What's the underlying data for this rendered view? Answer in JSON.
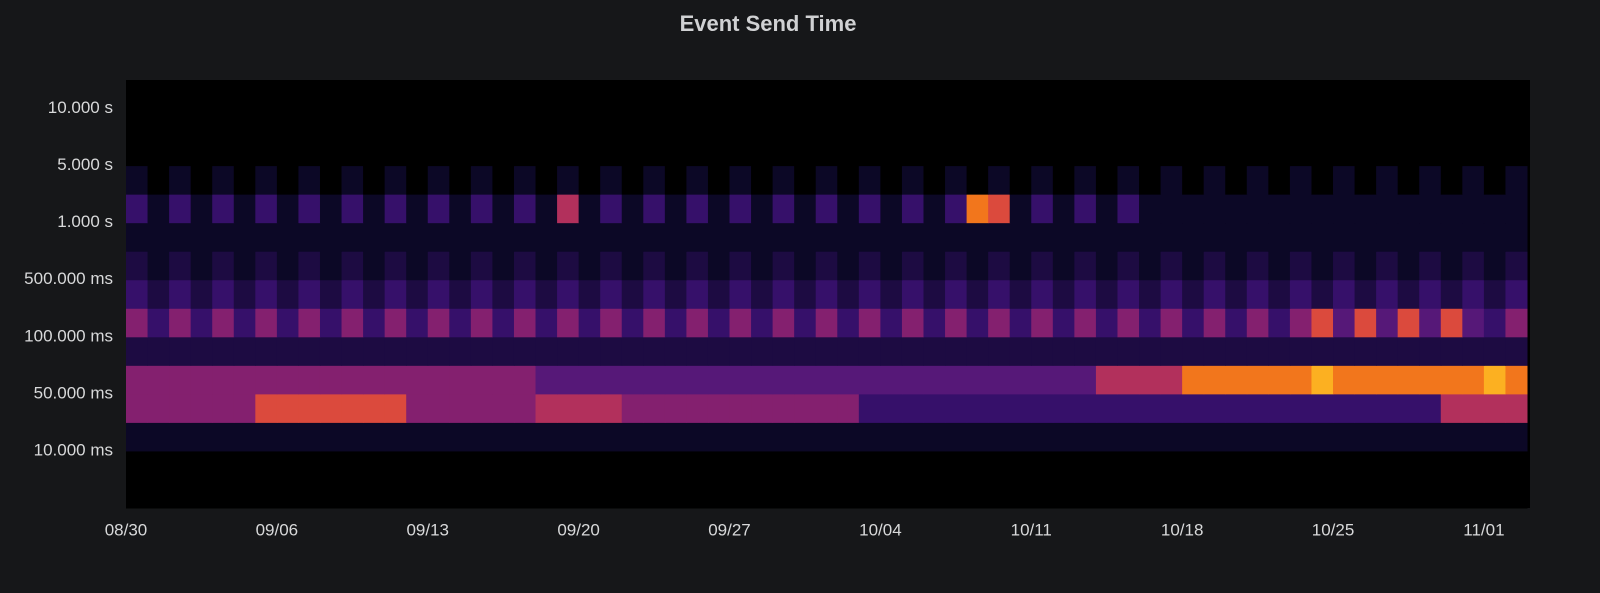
{
  "chart_data": {
    "type": "heatmap",
    "title": "Event Send Time",
    "x": [
      "08/30",
      null,
      null,
      null,
      null,
      null,
      null,
      "09/06",
      null,
      null,
      null,
      null,
      null,
      null,
      "09/13",
      null,
      null,
      null,
      null,
      null,
      null,
      "09/20",
      null,
      null,
      null,
      null,
      null,
      null,
      "09/27",
      null,
      null,
      null,
      null,
      null,
      null,
      "10/04",
      null,
      null,
      null,
      null,
      null,
      null,
      "10/11",
      null,
      null,
      null,
      null,
      null,
      null,
      "10/18",
      null,
      null,
      null,
      null,
      null,
      null,
      "10/25",
      null,
      null,
      null,
      null,
      null,
      null,
      "11/01",
      null
    ],
    "y_buckets": [
      null,
      "10.000 ms",
      null,
      "50.000 ms",
      null,
      "100.000 ms",
      null,
      "500.000 ms",
      null,
      "1.000 s",
      null,
      "5.000 s",
      null,
      "10.000 s",
      null
    ],
    "zlim": [
      0,
      10
    ],
    "colorscale": "inferno",
    "values": [
      [
        0,
        0,
        0,
        0,
        0,
        0,
        0,
        0,
        0,
        0,
        0,
        0,
        0,
        0,
        0,
        0,
        0,
        0,
        0,
        0,
        0,
        0,
        0,
        0,
        0,
        0,
        0,
        0,
        0,
        0,
        0,
        0,
        0,
        0,
        0,
        0,
        0,
        0,
        0,
        0,
        0,
        0,
        0,
        0,
        0,
        0,
        0,
        0,
        0,
        0,
        0,
        0,
        0,
        0,
        0,
        0,
        0,
        0,
        0,
        0,
        0,
        0,
        0,
        0,
        0
      ],
      [
        0,
        0,
        0,
        0,
        0,
        0,
        0,
        0,
        0,
        0,
        0,
        0,
        0,
        0,
        0,
        0,
        0,
        0,
        0,
        0,
        0,
        0,
        0,
        0,
        0,
        0,
        0,
        0,
        0,
        0,
        0,
        0,
        0,
        0,
        0,
        0,
        0,
        0,
        0,
        0,
        0,
        0,
        0,
        0,
        0,
        0,
        0,
        0,
        0,
        0,
        0,
        0,
        0,
        0,
        0,
        0,
        0,
        0,
        0,
        0,
        0,
        0,
        0,
        0,
        0
      ],
      [
        1,
        1,
        1,
        1,
        1,
        1,
        1,
        1,
        1,
        1,
        1,
        1,
        1,
        1,
        1,
        1,
        1,
        1,
        1,
        1,
        1,
        1,
        1,
        1,
        1,
        1,
        1,
        1,
        1,
        1,
        1,
        1,
        1,
        1,
        1,
        1,
        1,
        1,
        1,
        1,
        1,
        1,
        1,
        1,
        1,
        1,
        1,
        1,
        1,
        1,
        1,
        1,
        1,
        1,
        1,
        1,
        1,
        1,
        1,
        1,
        1,
        1,
        1,
        1,
        1
      ],
      [
        5,
        5,
        5,
        5,
        5,
        5,
        7,
        7,
        7,
        7,
        7,
        7,
        7,
        5,
        5,
        5,
        5,
        5,
        5,
        6,
        6,
        6,
        6,
        5,
        5,
        5,
        5,
        5,
        5,
        5,
        5,
        5,
        5,
        5,
        3,
        3,
        3,
        3,
        3,
        3,
        3,
        3,
        3,
        3,
        3,
        3,
        3,
        3,
        3,
        3,
        3,
        3,
        3,
        3,
        3,
        3,
        3,
        3,
        3,
        3,
        3,
        6,
        6,
        6,
        6
      ],
      [
        5,
        5,
        5,
        5,
        5,
        5,
        5,
        5,
        5,
        5,
        5,
        5,
        5,
        5,
        5,
        5,
        5,
        5,
        5,
        4,
        4,
        4,
        4,
        4,
        4,
        4,
        4,
        4,
        4,
        4,
        4,
        4,
        4,
        4,
        4,
        4,
        4,
        4,
        4,
        4,
        4,
        4,
        4,
        4,
        4,
        6,
        6,
        6,
        6,
        8,
        8,
        8,
        8,
        8,
        8,
        9,
        8,
        8,
        8,
        8,
        8,
        8,
        8,
        9,
        8
      ],
      [
        2,
        2,
        2,
        2,
        2,
        2,
        2,
        2,
        2,
        2,
        2,
        2,
        2,
        2,
        2,
        2,
        2,
        2,
        2,
        2,
        2,
        2,
        2,
        2,
        2,
        2,
        2,
        2,
        2,
        2,
        2,
        2,
        2,
        2,
        2,
        2,
        2,
        2,
        2,
        2,
        2,
        2,
        2,
        2,
        2,
        2,
        2,
        2,
        2,
        2,
        2,
        2,
        2,
        2,
        2,
        2,
        2,
        2,
        2,
        2,
        2,
        2,
        2,
        2,
        2
      ],
      [
        5,
        3,
        5,
        3,
        5,
        3,
        5,
        3,
        5,
        3,
        5,
        3,
        5,
        3,
        5,
        3,
        5,
        3,
        5,
        3,
        5,
        3,
        5,
        3,
        5,
        3,
        5,
        3,
        5,
        3,
        5,
        3,
        5,
        3,
        5,
        3,
        5,
        3,
        5,
        3,
        5,
        3,
        5,
        3,
        5,
        3,
        5,
        3,
        5,
        3,
        5,
        3,
        5,
        3,
        5,
        7,
        4,
        7,
        4,
        7,
        4,
        7,
        4,
        3,
        5
      ],
      [
        3,
        2,
        3,
        2,
        3,
        2,
        3,
        2,
        3,
        2,
        3,
        2,
        3,
        2,
        3,
        2,
        3,
        2,
        3,
        2,
        3,
        2,
        3,
        2,
        3,
        2,
        3,
        2,
        3,
        2,
        3,
        2,
        3,
        2,
        3,
        2,
        3,
        2,
        3,
        2,
        3,
        2,
        3,
        2,
        3,
        2,
        3,
        2,
        3,
        2,
        3,
        2,
        3,
        2,
        3,
        2,
        3,
        2,
        3,
        2,
        3,
        2,
        3,
        2,
        3
      ],
      [
        2,
        1,
        2,
        1,
        2,
        1,
        2,
        1,
        2,
        1,
        2,
        1,
        2,
        1,
        2,
        1,
        2,
        1,
        2,
        1,
        2,
        1,
        2,
        1,
        2,
        1,
        2,
        1,
        2,
        1,
        2,
        1,
        2,
        1,
        2,
        1,
        2,
        1,
        2,
        1,
        2,
        1,
        2,
        1,
        2,
        1,
        2,
        1,
        2,
        1,
        2,
        1,
        2,
        1,
        2,
        1,
        2,
        1,
        2,
        1,
        2,
        1,
        2,
        1,
        2
      ],
      [
        1,
        1,
        1,
        1,
        1,
        1,
        1,
        1,
        1,
        1,
        1,
        1,
        1,
        1,
        1,
        1,
        1,
        1,
        1,
        1,
        1,
        1,
        1,
        1,
        1,
        1,
        1,
        1,
        1,
        1,
        1,
        1,
        1,
        1,
        1,
        1,
        1,
        1,
        1,
        1,
        1,
        1,
        1,
        1,
        1,
        1,
        1,
        1,
        1,
        1,
        1,
        1,
        1,
        1,
        1,
        1,
        1,
        1,
        1,
        1,
        1,
        1,
        1,
        1,
        1
      ],
      [
        3,
        1,
        3,
        1,
        3,
        1,
        3,
        1,
        3,
        1,
        3,
        1,
        3,
        1,
        3,
        1,
        3,
        1,
        3,
        1,
        6,
        1,
        3,
        1,
        3,
        1,
        3,
        1,
        3,
        1,
        3,
        1,
        3,
        1,
        3,
        1,
        3,
        1,
        3,
        8,
        7,
        1,
        3,
        1,
        3,
        1,
        3,
        1,
        1,
        1,
        1,
        1,
        1,
        1,
        1,
        1,
        1,
        1,
        1,
        1,
        1,
        1,
        1,
        1,
        1
      ],
      [
        1,
        0,
        1,
        0,
        1,
        0,
        1,
        0,
        1,
        0,
        1,
        0,
        1,
        0,
        1,
        0,
        1,
        0,
        1,
        0,
        1,
        0,
        1,
        0,
        1,
        0,
        1,
        0,
        1,
        0,
        1,
        0,
        1,
        0,
        1,
        0,
        1,
        0,
        1,
        0,
        1,
        0,
        1,
        0,
        1,
        0,
        1,
        0,
        1,
        0,
        1,
        0,
        1,
        0,
        1,
        0,
        1,
        0,
        1,
        0,
        1,
        0,
        1,
        0,
        1
      ],
      [
        0,
        0,
        0,
        0,
        0,
        0,
        0,
        0,
        0,
        0,
        0,
        0,
        0,
        0,
        0,
        0,
        0,
        0,
        0,
        0,
        0,
        0,
        0,
        0,
        0,
        0,
        0,
        0,
        0,
        0,
        0,
        0,
        0,
        0,
        0,
        0,
        0,
        0,
        0,
        0,
        0,
        0,
        0,
        0,
        0,
        0,
        0,
        0,
        0,
        0,
        0,
        0,
        0,
        0,
        0,
        0,
        0,
        0,
        0,
        0,
        0,
        0,
        0,
        0,
        0
      ],
      [
        0,
        0,
        0,
        0,
        0,
        0,
        0,
        0,
        0,
        0,
        0,
        0,
        0,
        0,
        0,
        0,
        0,
        0,
        0,
        0,
        0,
        0,
        0,
        0,
        0,
        0,
        0,
        0,
        0,
        0,
        0,
        0,
        0,
        0,
        0,
        0,
        0,
        0,
        0,
        0,
        0,
        0,
        0,
        0,
        0,
        0,
        0,
        0,
        0,
        0,
        0,
        0,
        0,
        0,
        0,
        0,
        0,
        0,
        0,
        0,
        0,
        0,
        0,
        0,
        0
      ],
      [
        0,
        0,
        0,
        0,
        0,
        0,
        0,
        0,
        0,
        0,
        0,
        0,
        0,
        0,
        0,
        0,
        0,
        0,
        0,
        0,
        0,
        0,
        0,
        0,
        0,
        0,
        0,
        0,
        0,
        0,
        0,
        0,
        0,
        0,
        0,
        0,
        0,
        0,
        0,
        0,
        0,
        0,
        0,
        0,
        0,
        0,
        0,
        0,
        0,
        0,
        0,
        0,
        0,
        0,
        0,
        0,
        0,
        0,
        0,
        0,
        0,
        0,
        0,
        0,
        0
      ]
    ]
  }
}
